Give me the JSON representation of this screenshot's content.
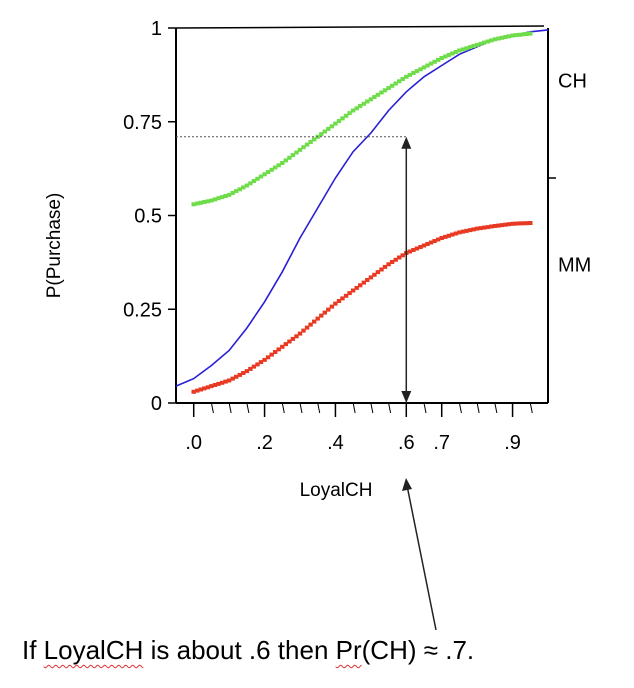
{
  "chart_data": {
    "type": "line",
    "title": "",
    "xlabel": "LoyalCH",
    "ylabel": "P(Purchase)",
    "xlim": [
      -0.05,
      1.0
    ],
    "ylim": [
      0,
      1
    ],
    "x_ticks": [
      {
        "value": 0.0,
        "label": ".0"
      },
      {
        "value": 0.2,
        "label": ".2"
      },
      {
        "value": 0.4,
        "label": ".4"
      },
      {
        "value": 0.6,
        "label": ".6"
      },
      {
        "value": 0.7,
        "label": ".7"
      },
      {
        "value": 0.9,
        "label": ".9"
      }
    ],
    "y_ticks": [
      {
        "value": 0,
        "label": "0"
      },
      {
        "value": 0.25,
        "label": "0.25"
      },
      {
        "value": 0.5,
        "label": "0.5"
      },
      {
        "value": 0.75,
        "label": "0.75"
      },
      {
        "value": 1,
        "label": "1"
      }
    ],
    "grid": false,
    "series": [
      {
        "color": "#2a1fd6",
        "style": "line",
        "x": [
          -0.05,
          0.0,
          0.05,
          0.1,
          0.15,
          0.2,
          0.25,
          0.3,
          0.35,
          0.4,
          0.45,
          0.5,
          0.55,
          0.6,
          0.65,
          0.7,
          0.75,
          0.8,
          0.85,
          0.9,
          0.95,
          1.0
        ],
        "y": [
          0.045,
          0.065,
          0.1,
          0.14,
          0.2,
          0.27,
          0.35,
          0.44,
          0.52,
          0.6,
          0.67,
          0.72,
          0.78,
          0.83,
          0.87,
          0.9,
          0.93,
          0.95,
          0.97,
          0.98,
          0.99,
          0.995
        ]
      },
      {
        "color": "#6fdc4a",
        "style": "points",
        "x": [
          0.0,
          0.05,
          0.1,
          0.15,
          0.2,
          0.25,
          0.3,
          0.35,
          0.4,
          0.45,
          0.5,
          0.55,
          0.6,
          0.65,
          0.7,
          0.75,
          0.8,
          0.85,
          0.9,
          0.95
        ],
        "y": [
          0.53,
          0.54,
          0.555,
          0.58,
          0.61,
          0.64,
          0.675,
          0.71,
          0.745,
          0.78,
          0.81,
          0.84,
          0.87,
          0.895,
          0.92,
          0.94,
          0.955,
          0.97,
          0.98,
          0.985
        ]
      },
      {
        "color": "#e83a22",
        "style": "points",
        "x": [
          0.0,
          0.05,
          0.1,
          0.15,
          0.2,
          0.25,
          0.3,
          0.35,
          0.4,
          0.45,
          0.5,
          0.55,
          0.6,
          0.65,
          0.7,
          0.75,
          0.8,
          0.85,
          0.9,
          0.95
        ],
        "y": [
          0.03,
          0.045,
          0.06,
          0.085,
          0.115,
          0.15,
          0.185,
          0.225,
          0.265,
          0.3,
          0.335,
          0.37,
          0.4,
          0.42,
          0.44,
          0.455,
          0.465,
          0.472,
          0.478,
          0.48
        ]
      }
    ],
    "annotations": {
      "region_labels": [
        {
          "text": "CH",
          "y": 0.86
        },
        {
          "text": "MM",
          "y": 0.37
        }
      ],
      "region_divider_y": 0.6,
      "reference_x": 0.6,
      "reference_y": 0.71,
      "caption": {
        "before": "If ",
        "var1": "LoyalCH",
        "middle": " is about .6 then ",
        "var2": "Pr",
        "after": "(CH) ≈ .7."
      }
    }
  }
}
